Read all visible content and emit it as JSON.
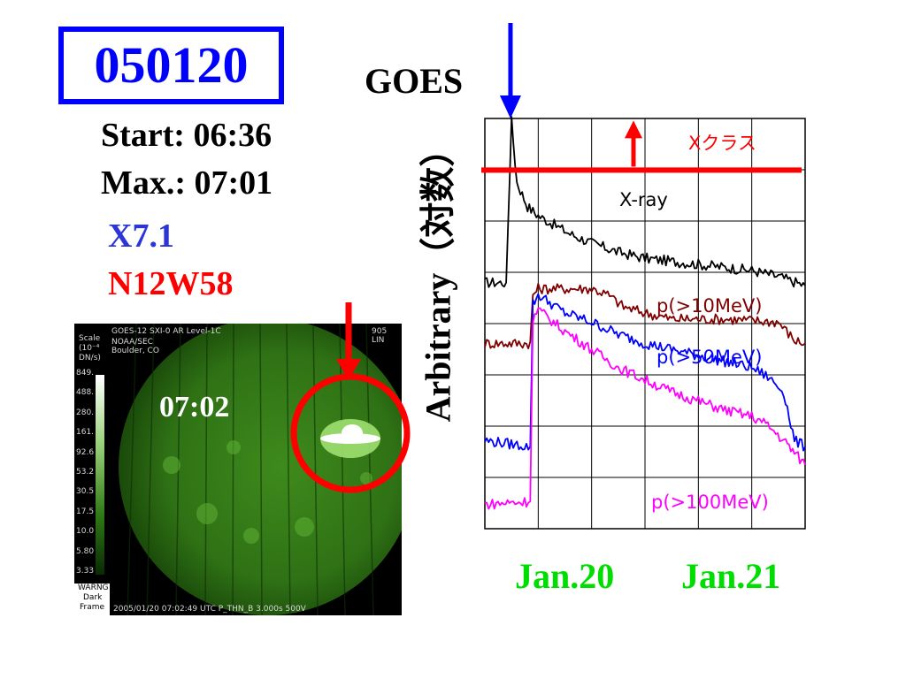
{
  "slide": {
    "event_id": "050120",
    "start": "Start: 06:36",
    "max": "Max.: 07:01",
    "class": "X7.1",
    "location": "N12W58"
  },
  "sxi_image": {
    "time_label": "07:02",
    "header_left": [
      "GOES-12   SXI-0  AR     Level-1C",
      "NOAA/SEC",
      "Boulder, CO"
    ],
    "header_right": [
      "905",
      "LIN"
    ],
    "scale_title": [
      "Scale",
      "(10⁻⁴",
      "DN/s)"
    ],
    "scale_values": [
      "849.",
      "488.",
      "280.",
      "161.",
      "92.6",
      "53.2",
      "30.5",
      "17.5",
      "10.0",
      "5.80",
      "3.33"
    ],
    "warning": [
      "WARNG",
      "Dark",
      "Frame"
    ],
    "footer": "2005/01/20 07:02:49 UTC   P_THN_B   3.000s   500V"
  },
  "chart_data": {
    "type": "line",
    "title": "GOES",
    "ylabel": "Arbitrary（対数）",
    "x_tick_labels": [
      "Jan.20",
      "Jan.21"
    ],
    "grid": true,
    "threshold_label": "Xクラス",
    "series": [
      {
        "name": "X-ray",
        "color": "#000000",
        "x": [
          0,
          0.4,
          0.5,
          0.6,
          0.8,
          1.0,
          1.3,
          1.6,
          2.0,
          2.5,
          3.0,
          3.5,
          4.0,
          4.5,
          5.0,
          5.5,
          6.0
        ],
        "y": [
          8.1,
          8.1,
          13.4,
          11.4,
          10.6,
          10.3,
          10.0,
          9.7,
          9.4,
          9.1,
          8.9,
          8.8,
          8.7,
          8.6,
          8.5,
          8.3,
          8.0
        ]
      },
      {
        "name": "p(>10MeV)",
        "color": "#800000",
        "x": [
          0,
          0.85,
          0.9,
          1.0,
          1.5,
          2.0,
          2.3,
          2.6,
          3.0,
          3.5,
          4.0,
          4.5,
          5.0,
          5.5,
          5.8,
          6.0
        ],
        "y": [
          6.1,
          6.1,
          7.7,
          7.9,
          7.9,
          7.9,
          7.7,
          7.3,
          7.1,
          6.9,
          6.9,
          6.9,
          6.85,
          6.8,
          6.2,
          6.1
        ]
      },
      {
        "name": "p(>50MeV)",
        "color": "#0000ff",
        "x": [
          0,
          0.85,
          0.9,
          1.0,
          1.5,
          2.0,
          2.5,
          3.0,
          3.5,
          4.0,
          4.5,
          5.0,
          5.3,
          5.6,
          5.8,
          6.0
        ],
        "y": [
          2.9,
          2.7,
          7.4,
          7.7,
          7.1,
          6.8,
          6.4,
          6.1,
          5.9,
          5.7,
          5.5,
          5.3,
          5.0,
          4.5,
          2.9,
          2.7
        ]
      },
      {
        "name": "p(>100MeV)",
        "color": "#ff00ff",
        "x": [
          0,
          0.85,
          0.9,
          1.0,
          1.5,
          2.0,
          2.5,
          3.0,
          3.5,
          4.0,
          4.5,
          5.0,
          5.3,
          5.6,
          5.8,
          6.0
        ],
        "y": [
          0.8,
          0.9,
          6.9,
          7.2,
          6.5,
          5.9,
          5.3,
          4.9,
          4.5,
          4.2,
          3.9,
          3.7,
          3.4,
          2.9,
          2.5,
          2.1
        ]
      }
    ],
    "threshold_y": 11.8,
    "xlim": [
      0,
      6
    ],
    "ylim": [
      0,
      13.5
    ],
    "legend_placement": "inline"
  },
  "colors": {
    "box": "#0000ff",
    "xclass": "#ff0000",
    "location": "#ff0000",
    "class": "#0000ff",
    "dates": "#00dd00",
    "sun": "#2d6a14"
  }
}
